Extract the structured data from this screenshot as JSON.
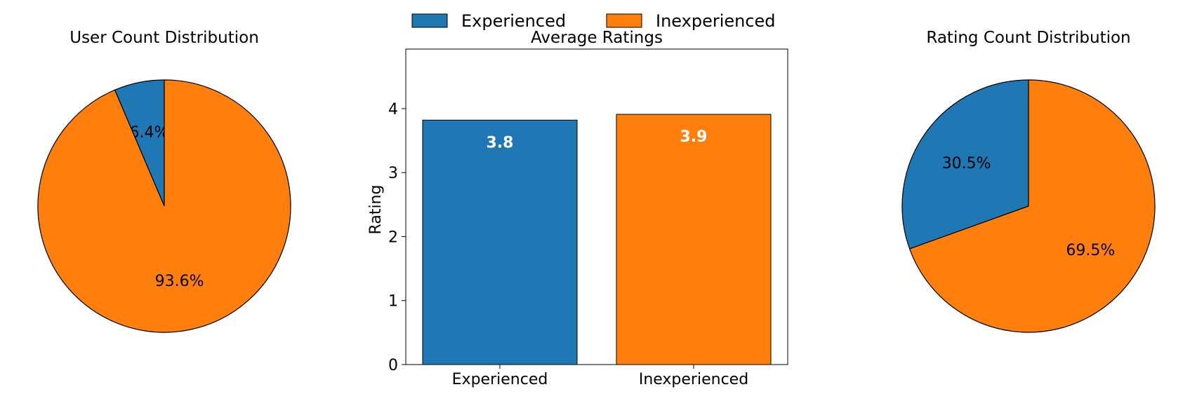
{
  "colors": {
    "experienced": "#1f77b4",
    "inexperienced": "#ff7f0e",
    "edge": "#000000"
  },
  "legend": {
    "placement": "top-center",
    "entries": [
      {
        "label": "Experienced",
        "color": "#1f77b4"
      },
      {
        "label": "Inexperienced",
        "color": "#ff7f0e"
      }
    ]
  },
  "chart_data": [
    {
      "type": "pie",
      "title": "User Count Distribution",
      "labels": [
        "Experienced",
        "Inexperienced"
      ],
      "values": [
        6.4,
        93.6
      ],
      "value_labels": [
        "6.4%",
        "93.6%"
      ],
      "colors": [
        "#1f77b4",
        "#ff7f0e"
      ],
      "start_angle_deg": 90,
      "direction": "counterclockwise"
    },
    {
      "type": "bar",
      "title": "Average Ratings",
      "categories": [
        "Experienced",
        "Inexperienced"
      ],
      "values": [
        3.82,
        3.91
      ],
      "value_labels": [
        "3.8",
        "3.9"
      ],
      "colors": [
        "#1f77b4",
        "#ff7f0e"
      ],
      "xlabel": "",
      "ylabel": "Rating",
      "ylim": [
        0,
        4.93
      ],
      "yticks": [
        0,
        1,
        2,
        3,
        4
      ],
      "grid": false
    },
    {
      "type": "pie",
      "title": "Rating Count Distribution",
      "labels": [
        "Experienced",
        "Inexperienced"
      ],
      "values": [
        30.5,
        69.5
      ],
      "value_labels": [
        "30.5%",
        "69.5%"
      ],
      "colors": [
        "#1f77b4",
        "#ff7f0e"
      ],
      "start_angle_deg": 90,
      "direction": "counterclockwise"
    }
  ]
}
